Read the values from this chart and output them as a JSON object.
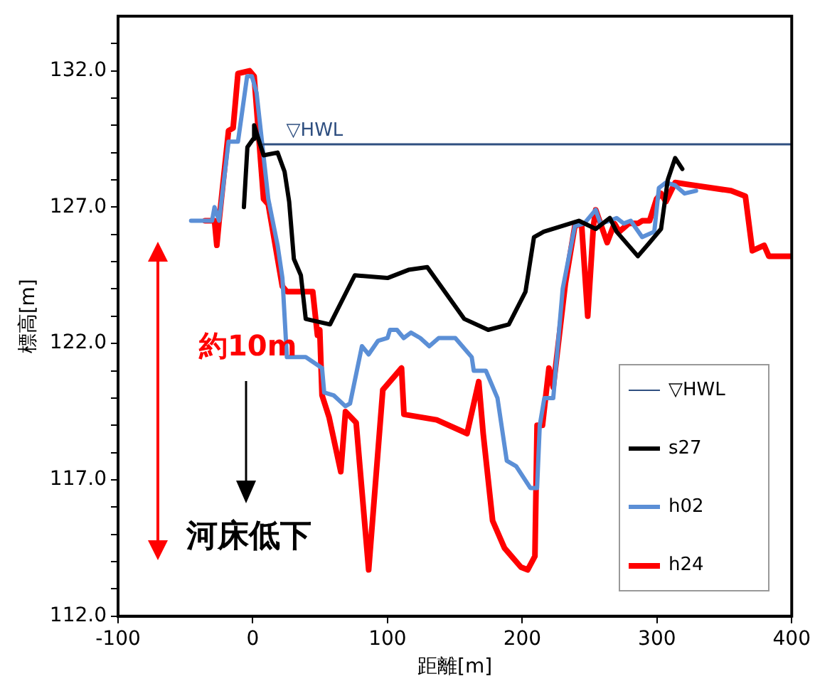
{
  "chart_data": {
    "type": "line",
    "xlabel": "距離[m]",
    "ylabel": "標高[m]",
    "xlim": [
      -100,
      400
    ],
    "xticks": [
      -100,
      0,
      100,
      200,
      300,
      400
    ],
    "ylim": [
      112,
      134
    ],
    "yticks": [
      {
        "value": 112,
        "label": "112.0"
      },
      {
        "value": 113,
        "label": null
      },
      {
        "value": 114,
        "label": null
      },
      {
        "value": 115,
        "label": null
      },
      {
        "value": 116,
        "label": null
      },
      {
        "value": 117,
        "label": "117.0"
      },
      {
        "value": 118,
        "label": null
      },
      {
        "value": 119,
        "label": null
      },
      {
        "value": 120,
        "label": null
      },
      {
        "value": 121,
        "label": null
      },
      {
        "value": 122,
        "label": "122.0"
      },
      {
        "value": 123,
        "label": null
      },
      {
        "value": 124,
        "label": null
      },
      {
        "value": 125,
        "label": null
      },
      {
        "value": 126,
        "label": null
      },
      {
        "value": 127,
        "label": "127.0"
      },
      {
        "value": 128,
        "label": null
      },
      {
        "value": 129,
        "label": null
      },
      {
        "value": 130,
        "label": null
      },
      {
        "value": 131,
        "label": null
      },
      {
        "value": 132,
        "label": "132.0"
      },
      {
        "value": 133,
        "label": null
      }
    ],
    "grid": false,
    "legend": "bottom right",
    "annotations": [
      "約10m",
      "河床低下"
    ],
    "series": [
      {
        "name": "▽HWL",
        "color": "#2f4f80",
        "x": [
          8,
          400
        ],
        "values": [
          129.3,
          129.3
        ]
      },
      {
        "name": "s27",
        "color": "#000000",
        "x": [
          -6.6,
          -4,
          0.3,
          1,
          8,
          18.4,
          23.6,
          27,
          30.5,
          35.7,
          39.3,
          57.3,
          75.7,
          100,
          115.6,
          129.5,
          157,
          174.7,
          190,
          202.4,
          208.7,
          216,
          242,
          254.5,
          265,
          270,
          285.8,
          294.5,
          303,
          308,
          313.5,
          318.8
        ],
        "values": [
          127.0,
          129.2,
          129.5,
          130.0,
          128.9,
          129.0,
          128.3,
          127.2,
          125.1,
          124.5,
          122.9,
          122.7,
          124.5,
          124.4,
          124.7,
          124.8,
          122.9,
          122.5,
          122.7,
          123.9,
          125.9,
          126.1,
          126.5,
          126.2,
          126.6,
          126.1,
          125.2,
          125.7,
          126.2,
          128.0,
          128.8,
          128.4
        ]
      },
      {
        "name": "h02",
        "color": "#5b8fd6",
        "x": [
          -45.8,
          -30.2,
          -28.4,
          -25,
          -18,
          -11,
          -4.2,
          -0.7,
          2.8,
          11.5,
          18.4,
          22,
          25.3,
          39.3,
          51.4,
          53,
          60,
          68.7,
          72.2,
          81,
          86,
          93,
          100,
          101.8,
          107,
          112,
          117.4,
          124.3,
          131,
          138,
          150.3,
          162.5,
          164,
          173,
          181.6,
          188.5,
          195.5,
          206,
          211,
          213,
          216.4,
          223,
          230,
          239,
          246,
          254.5,
          258,
          265,
          270,
          275.3,
          280.5,
          289,
          298,
          301.4,
          306.6,
          313.5,
          320.5,
          329
        ],
        "values": [
          126.5,
          126.5,
          127.0,
          126.5,
          129.4,
          129.4,
          131.8,
          131.8,
          131.2,
          127.3,
          125.6,
          124.4,
          121.5,
          121.5,
          121.1,
          120.2,
          120.1,
          119.7,
          119.8,
          121.9,
          121.6,
          122.1,
          122.2,
          122.5,
          122.5,
          122.2,
          122.4,
          122.2,
          121.9,
          122.2,
          122.2,
          121.5,
          121.0,
          121.0,
          120.0,
          117.7,
          117.5,
          116.7,
          116.7,
          119.0,
          120.0,
          120.0,
          124.0,
          126.3,
          126.4,
          126.9,
          126.4,
          126.5,
          126.6,
          126.4,
          126.5,
          125.9,
          126.1,
          127.7,
          127.9,
          127.8,
          127.5,
          127.6
        ]
      },
      {
        "name": "h24",
        "color": "#ff0000",
        "x": [
          -35.4,
          -28.4,
          -26.7,
          -25,
          -18,
          -14.6,
          -11,
          -2.4,
          1,
          8,
          11.5,
          21.9,
          25.3,
          44.5,
          48,
          49.7,
          51.4,
          56.6,
          65.3,
          68.8,
          76.7,
          86,
          96.5,
          110.4,
          112.2,
          136.5,
          159,
          167.7,
          171,
          178,
          186.8,
          192,
          199,
          204,
          209.4,
          211,
          215,
          219.8,
          223,
          232,
          239,
          244,
          248.6,
          252.8,
          254.5,
          263,
          268.4,
          272,
          279,
          285.8,
          289,
          294.5,
          299.7,
          303,
          306.6,
          313.5,
          355,
          365.6,
          370.8,
          379.5,
          383,
          400
        ],
        "values": [
          126.5,
          126.5,
          125.6,
          126.5,
          129.8,
          129.9,
          131.9,
          132.0,
          131.8,
          127.3,
          127.1,
          124.1,
          123.9,
          123.9,
          122.3,
          122.5,
          120.1,
          119.3,
          117.3,
          119.5,
          119.1,
          113.7,
          120.3,
          121.1,
          119.4,
          119.2,
          118.7,
          120.6,
          118.7,
          115.5,
          114.5,
          114.2,
          113.8,
          113.7,
          114.2,
          119.0,
          119.0,
          121.1,
          120.4,
          124.2,
          126.3,
          126.4,
          123.0,
          126.3,
          126.9,
          125.7,
          126.4,
          126.1,
          126.4,
          126.4,
          126.5,
          126.5,
          127.3,
          127.5,
          127.2,
          127.9,
          127.6,
          127.4,
          125.4,
          125.6,
          125.2,
          125.2
        ]
      }
    ]
  }
}
